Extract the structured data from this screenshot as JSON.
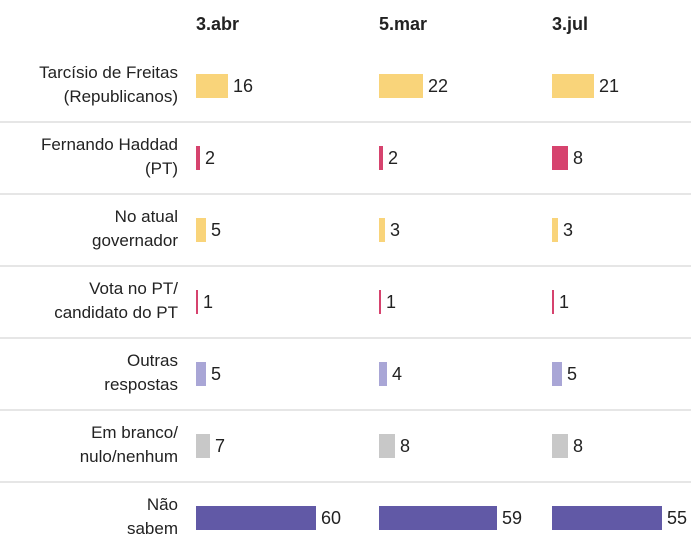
{
  "chart_data": {
    "type": "bar",
    "categories": [
      [
        "Tarcísio de Freitas",
        "(Republicanos)"
      ],
      [
        "Fernando Haddad",
        "(PT)"
      ],
      [
        "No atual",
        "governador"
      ],
      [
        "Vota no PT/",
        "candidato do PT"
      ],
      [
        "Outras",
        "respostas"
      ],
      [
        "Em branco/",
        "nulo/nenhum"
      ],
      [
        "Não",
        "sabem"
      ]
    ],
    "colors": [
      "#f9d47a",
      "#d6436e",
      "#f9d47a",
      "#d6436e",
      "#a9a6d6",
      "#c8c8c8",
      "#6159a6"
    ],
    "series": [
      {
        "name": "3.abr",
        "values": [
          16,
          2,
          5,
          1,
          5,
          7,
          60
        ]
      },
      {
        "name": "5.mar",
        "values": [
          22,
          2,
          3,
          1,
          4,
          8,
          59
        ]
      },
      {
        "name": "3.jul",
        "values": [
          21,
          8,
          3,
          1,
          5,
          8,
          55
        ]
      }
    ],
    "xlim": [
      0,
      60
    ]
  }
}
